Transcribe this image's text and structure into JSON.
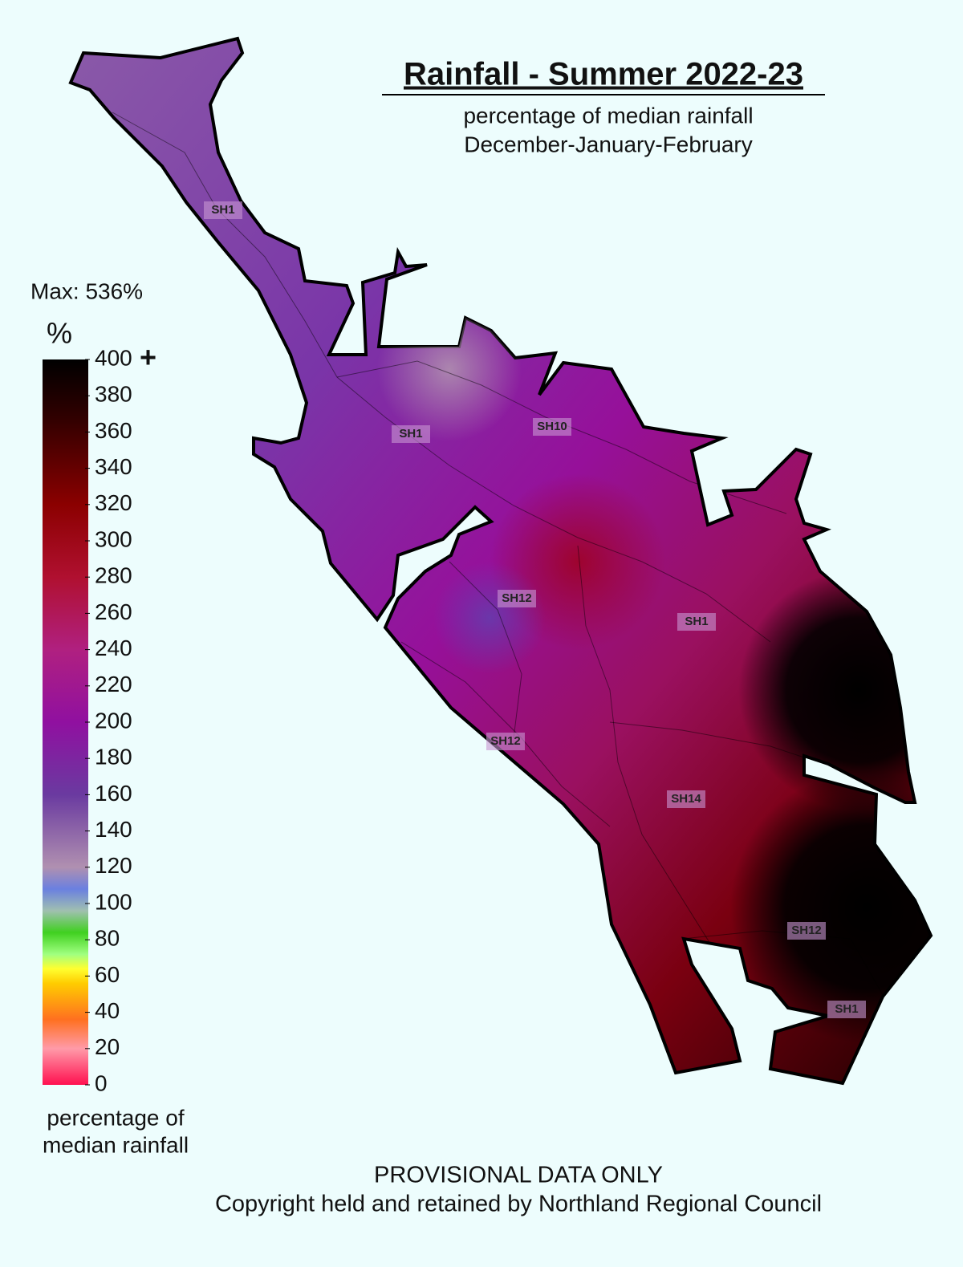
{
  "header": {
    "title": "Rainfall - Summer 2022-23",
    "subtitle": [
      "percentage of median rainfall",
      "December-January-February"
    ]
  },
  "legend": {
    "max_label": "Max: 536%",
    "unit": "%",
    "ticks": [
      0,
      20,
      40,
      60,
      80,
      100,
      120,
      140,
      160,
      180,
      200,
      220,
      240,
      260,
      280,
      300,
      320,
      340,
      360,
      380,
      400
    ],
    "top_suffix": "+",
    "caption": [
      "percentage of",
      "median rainfall"
    ]
  },
  "map": {
    "road_labels": [
      "SH1",
      "SH1",
      "SH10",
      "SH12",
      "SH1",
      "SH12",
      "SH14",
      "SH12",
      "SH1"
    ]
  },
  "footer": [
    "PROVISIONAL DATA ONLY",
    "Copyright held and retained by Northland Regional Council"
  ]
}
